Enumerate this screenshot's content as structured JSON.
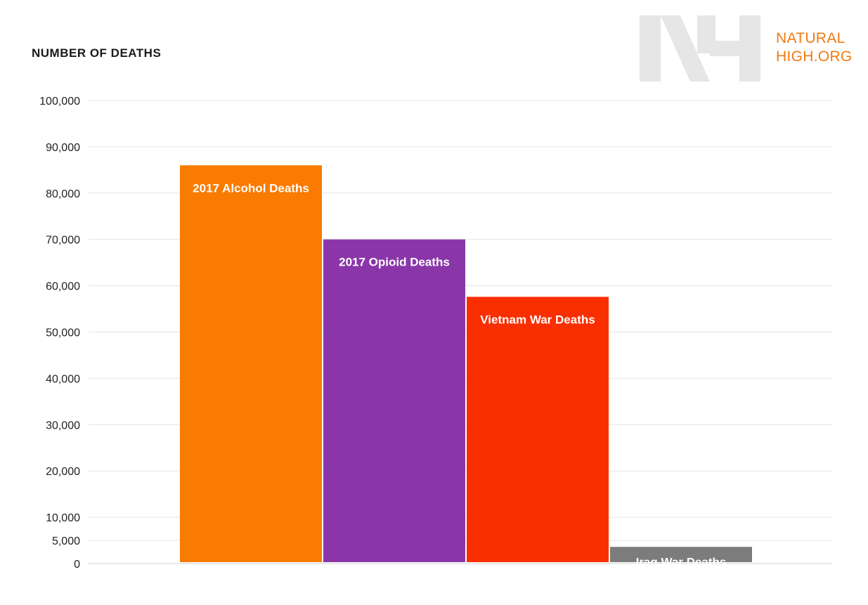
{
  "logo": {
    "line1": "NATURAL",
    "line2": "HIGH.ORG",
    "mark": "NH"
  },
  "chart_data": {
    "type": "bar",
    "title": "",
    "ylabel": "NUMBER OF DEATHS",
    "xlabel": "",
    "categories": [
      "2017 Alcohol Deaths",
      "2017 Opioid Deaths",
      "Vietnam War Deaths",
      "Iraq War Deaths"
    ],
    "values": [
      86000,
      70000,
      57600,
      3600
    ],
    "colors": [
      "#f97b02",
      "#8a36a9",
      "#f92f02",
      "#7c7c7c"
    ],
    "label_color": "#ffffff",
    "yticks": [
      0,
      5000,
      10000,
      20000,
      30000,
      40000,
      50000,
      60000,
      70000,
      80000,
      90000,
      100000
    ],
    "ytick_labels": [
      "0",
      "5,000",
      "10,000",
      "20,000",
      "30,000",
      "40,000",
      "50,000",
      "60,000",
      "70,000",
      "80,000",
      "90,000",
      "100,000"
    ],
    "ylim": [
      0,
      100000
    ],
    "grid": true,
    "legend": "none"
  }
}
